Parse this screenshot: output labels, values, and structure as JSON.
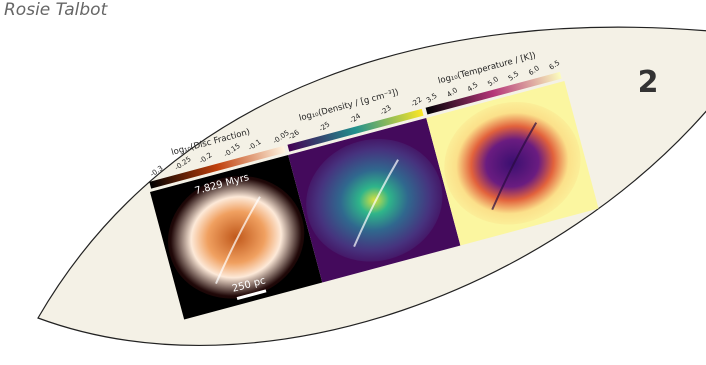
{
  "author": "Rosie Talbot",
  "page_number": "2",
  "figure": {
    "panels": [
      {
        "label": "log₁₀(Disc Fraction)",
        "ticks": [
          "-0.3",
          "-0.25",
          "-0.2",
          "-0.15",
          "-0.1",
          "-0.05"
        ]
      },
      {
        "label": "log₁₀(Density / [g cm⁻³])",
        "ticks": [
          "-26",
          "-25",
          "-24",
          "-23",
          "-22"
        ]
      },
      {
        "label": "log₁₀(Temperature / [K])",
        "ticks": [
          "3.5",
          "4.0",
          "4.5",
          "5.0",
          "5.5",
          "6.0",
          "6.5"
        ]
      }
    ],
    "time_label": "7.829 Myrs",
    "scale_label": "250 pc"
  }
}
